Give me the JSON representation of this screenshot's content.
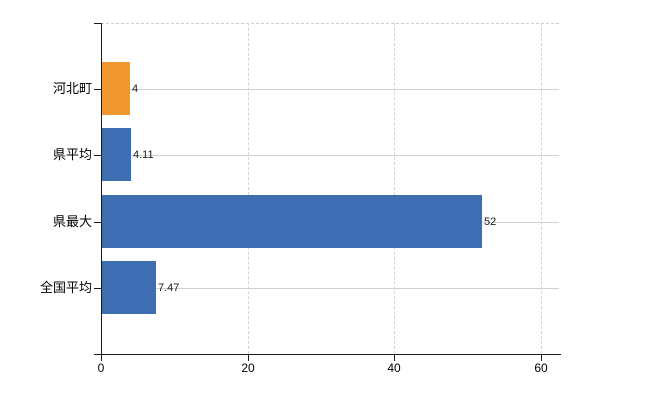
{
  "chart_data": {
    "type": "bar",
    "orientation": "horizontal",
    "categories": [
      "河北町",
      "県平均",
      "県最大",
      "全国平均"
    ],
    "values": [
      4,
      4.11,
      52,
      7.47
    ],
    "value_labels": [
      "4",
      "4.11",
      "52",
      "7.47"
    ],
    "bar_colors": [
      "#f0972e",
      "#3d6db3",
      "#3d6db3",
      "#3d6db3"
    ],
    "x_ticks": [
      0,
      20,
      40,
      60
    ],
    "x_tick_labels": [
      "0",
      "20",
      "40",
      "60"
    ],
    "xlim": [
      0,
      62.6
    ],
    "grid": true,
    "legend": "none",
    "title": "",
    "background": "#ffffff"
  }
}
